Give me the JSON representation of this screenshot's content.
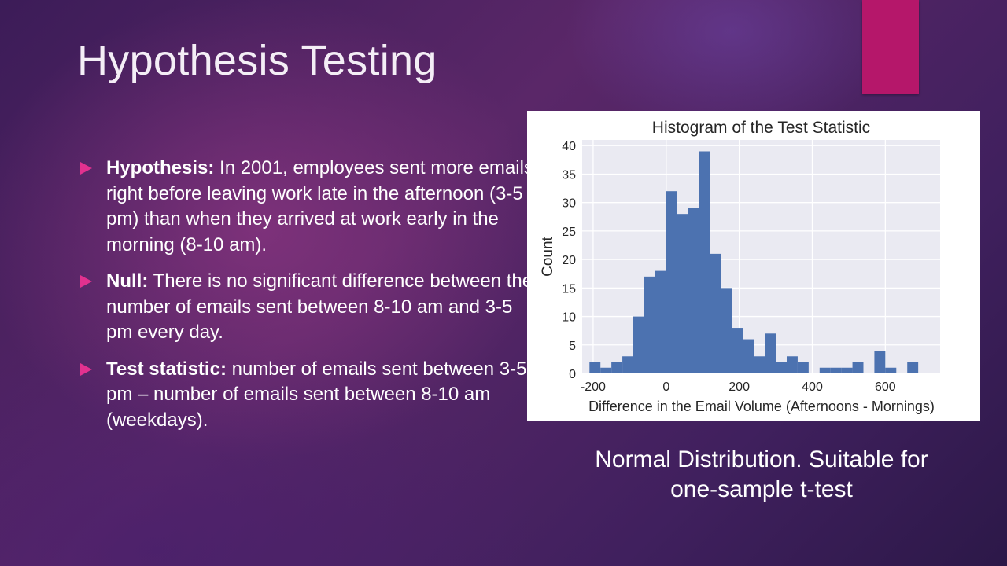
{
  "slide": {
    "title": "Hypothesis Testing",
    "accent_color": "#b5176a",
    "bullet_color": "#e2318f",
    "caption": "Normal Distribution. Suitable for one-sample t-test"
  },
  "bullets": [
    {
      "term": "Hypothesis:",
      "text": " In 2001, employees sent more emails right before leaving work late in the afternoon (3-5 pm) than when they arrived at work early in the morning (8-10 am)."
    },
    {
      "term": "Null:",
      "text": " There is no significant difference between the number of emails sent between 8-10 am and 3-5 pm every day."
    },
    {
      "term": "Test statistic:",
      "text": " number of emails sent between 3-5 pm – number of emails sent between 8-10 am (weekdays)."
    }
  ],
  "chart_data": {
    "type": "bar",
    "subtype": "histogram",
    "title": "Histogram of the Test Statistic",
    "xlabel": "Difference in the Email Volume (Afternoons - Mornings)",
    "ylabel": "Count",
    "xlim": [
      -230,
      750
    ],
    "ylim": [
      0,
      41
    ],
    "xticks": [
      "-200",
      "0",
      "200",
      "400",
      "600"
    ],
    "xtick_values": [
      -200,
      0,
      200,
      400,
      600
    ],
    "yticks": [
      "0",
      "5",
      "10",
      "15",
      "20",
      "25",
      "30",
      "35",
      "40"
    ],
    "ytick_values": [
      0,
      5,
      10,
      15,
      20,
      25,
      30,
      35,
      40
    ],
    "bin_width": 30,
    "bin_start": -210,
    "values": [
      2,
      1,
      2,
      3,
      10,
      17,
      18,
      32,
      28,
      29,
      39,
      21,
      15,
      8,
      6,
      3,
      7,
      2,
      3,
      2,
      0,
      1,
      1,
      1,
      2,
      0,
      4,
      1,
      0,
      2
    ],
    "grid": true,
    "bar_color": "#4c72b0",
    "background_color": "#eaeaf2"
  }
}
